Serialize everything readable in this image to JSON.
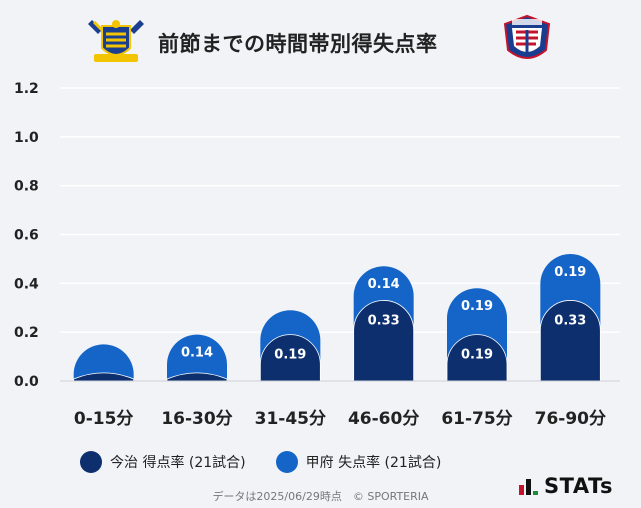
{
  "title": "前節までの時間帯別得失点率",
  "logos": {
    "home": "imabari-crest",
    "away": "kofu-crest",
    "stats": "STATs"
  },
  "legend": {
    "home_label": "今治 得点率 (21試合)",
    "away_label": "甲府 失点率 (21試合)"
  },
  "footer": {
    "text": "データは2025/06/29時点　© SPORTERIA"
  },
  "colors": {
    "home": "#0d2f6e",
    "away": "#1565c8",
    "background": "#f1f3f7",
    "grid": "#ffffff"
  },
  "chart_data": {
    "type": "bar",
    "stacked": true,
    "categories": [
      "0-15分",
      "16-30分",
      "31-45分",
      "46-60分",
      "61-75分",
      "76-90分"
    ],
    "series": [
      {
        "name": "今治 得点率 (21試合)",
        "values": [
          0.05,
          0.05,
          0.19,
          0.33,
          0.19,
          0.33
        ],
        "labels": [
          "",
          "",
          "0.19",
          "0.33",
          "0.19",
          "0.33"
        ]
      },
      {
        "name": "甲府 失点率 (21試合)",
        "values": [
          0.1,
          0.14,
          0.1,
          0.14,
          0.19,
          0.19
        ],
        "labels": [
          "",
          "0.14",
          "",
          "0.14",
          "0.19",
          "0.19"
        ]
      }
    ],
    "ylim": [
      0,
      1.2
    ],
    "yticks": [
      "0.0",
      "0.2",
      "0.4",
      "0.6",
      "0.8",
      "1.0",
      "1.2"
    ],
    "grid": true,
    "legend_position": "bottom-left"
  }
}
